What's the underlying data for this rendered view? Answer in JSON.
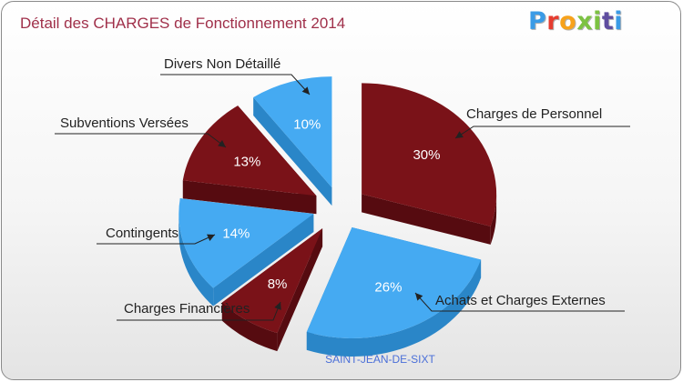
{
  "title": "Détail des CHARGES de Fonctionnement 2014",
  "logo": {
    "text": "Proxiti",
    "colors": [
      "#3a9be6",
      "#e63c2f",
      "#f7a21b",
      "#7cc242",
      "#5f4da0"
    ]
  },
  "commune": "SAINT-JEAN-DE-SIXT",
  "colors": {
    "red": "#7a1218",
    "red_side": "#560b10",
    "blue": "#45aaf2",
    "blue_side": "#2a86c8"
  },
  "chart_data": {
    "type": "pie",
    "title": "Détail des CHARGES de Fonctionnement 2014",
    "slices": [
      {
        "label": "Charges de Personnel",
        "value": 30,
        "pct_label": "30%",
        "color": "red"
      },
      {
        "label": "Achats et Charges Externes",
        "value": 26,
        "pct_label": "26%",
        "color": "blue"
      },
      {
        "label": "Charges Financières",
        "value": 8,
        "pct_label": "8%",
        "color": "red"
      },
      {
        "label": "Contingents",
        "value": 14,
        "pct_label": "14%",
        "color": "blue"
      },
      {
        "label": "Subventions Versées",
        "value": 13,
        "pct_label": "13%",
        "color": "red"
      },
      {
        "label": "Divers Non Détaillé",
        "value": 10,
        "pct_label": "10%",
        "color": "blue"
      }
    ]
  }
}
